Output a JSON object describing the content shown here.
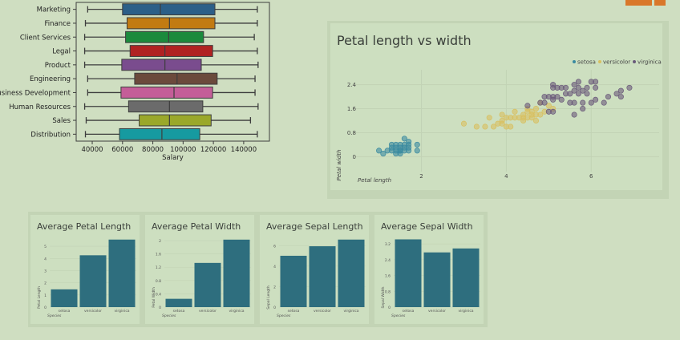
{
  "colors": {
    "bar": "#2e6e7e",
    "setosa": "#3a8aa0",
    "versicolor": "#d8c060",
    "virginica": "#6a5a7a",
    "orange": "#d9772a"
  },
  "chart_data": [
    {
      "type": "box",
      "xlabel": "Salary",
      "xlim": [
        29400,
        157000
      ],
      "xticks": [
        40000,
        60000,
        80000,
        100000,
        120000,
        140000
      ],
      "categories": [
        "Marketing",
        "Finance",
        "Client Services",
        "Legal",
        "Product",
        "Engineering",
        "usiness Development",
        "Human Resources",
        "Sales",
        "Distribution"
      ],
      "colors": [
        "#2c5f88",
        "#c27b12",
        "#1b8a3c",
        "#b02222",
        "#7a4c8e",
        "#6b4a3c",
        "#c45e98",
        "#6b6b6b",
        "#9aa82a",
        "#169aa0"
      ],
      "stats": [
        [
          37000,
          60000,
          85000,
          121000,
          149000
        ],
        [
          35500,
          63000,
          91000,
          121000,
          149000
        ],
        [
          35000,
          62000,
          90500,
          113500,
          147000
        ],
        [
          35000,
          65000,
          88000,
          119500,
          149000
        ],
        [
          35000,
          59500,
          88000,
          112000,
          149500
        ],
        [
          37000,
          68000,
          96000,
          122500,
          147500
        ],
        [
          37000,
          59000,
          94000,
          119500,
          147500
        ],
        [
          35000,
          64000,
          91000,
          113000,
          149500
        ],
        [
          36000,
          71000,
          91000,
          118500,
          144500
        ],
        [
          35500,
          58000,
          86000,
          111000,
          149000
        ]
      ]
    },
    {
      "type": "scatter",
      "title": "Petal length vs width",
      "xlabel": "Petal length",
      "ylabel": "Petal width",
      "xlim": [
        0.8,
        7.6
      ],
      "ylim": [
        -0.5,
        2.9
      ],
      "xticks": [
        2,
        4,
        6
      ],
      "yticks": [
        0,
        0.8,
        1.6,
        2.4
      ],
      "legend": "top-right",
      "series": [
        {
          "name": "setosa",
          "points": [
            [
              1.4,
              0.2
            ],
            [
              1.3,
              0.2
            ],
            [
              1.5,
              0.2
            ],
            [
              1.4,
              0.3
            ],
            [
              1.7,
              0.4
            ],
            [
              1.5,
              0.1
            ],
            [
              1.6,
              0.2
            ],
            [
              1.4,
              0.1
            ],
            [
              1.1,
              0.1
            ],
            [
              1.2,
              0.2
            ],
            [
              1.5,
              0.4
            ],
            [
              1.3,
              0.4
            ],
            [
              1.7,
              0.3
            ],
            [
              1.5,
              0.3
            ],
            [
              1.7,
              0.2
            ],
            [
              1.0,
              0.2
            ],
            [
              1.7,
              0.5
            ],
            [
              1.9,
              0.2
            ],
            [
              1.6,
              0.4
            ],
            [
              1.9,
              0.4
            ],
            [
              1.6,
              0.6
            ],
            [
              1.3,
              0.3
            ],
            [
              1.4,
              0.4
            ],
            [
              1.5,
              0.2
            ],
            [
              1.6,
              0.3
            ]
          ]
        },
        {
          "name": "versicolor",
          "points": [
            [
              4.7,
              1.4
            ],
            [
              4.5,
              1.5
            ],
            [
              4.9,
              1.5
            ],
            [
              4.0,
              1.3
            ],
            [
              4.6,
              1.5
            ],
            [
              4.5,
              1.3
            ],
            [
              4.7,
              1.6
            ],
            [
              3.3,
              1.0
            ],
            [
              4.6,
              1.3
            ],
            [
              3.9,
              1.4
            ],
            [
              3.5,
              1.0
            ],
            [
              4.2,
              1.5
            ],
            [
              4.0,
              1.0
            ],
            [
              3.6,
              1.3
            ],
            [
              4.4,
              1.4
            ],
            [
              4.1,
              1.0
            ],
            [
              3.9,
              1.1
            ],
            [
              4.8,
              1.8
            ],
            [
              4.7,
              1.2
            ],
            [
              4.3,
              1.3
            ],
            [
              4.8,
              1.4
            ],
            [
              5.0,
              1.7
            ],
            [
              3.8,
              1.1
            ],
            [
              3.7,
              1.0
            ],
            [
              3.9,
              1.2
            ],
            [
              5.1,
              1.6
            ],
            [
              4.4,
              1.3
            ],
            [
              4.1,
              1.3
            ],
            [
              4.4,
              1.2
            ],
            [
              3.0,
              1.1
            ],
            [
              4.2,
              1.3
            ],
            [
              4.5,
              1.6
            ],
            [
              4.6,
              1.4
            ]
          ]
        },
        {
          "name": "virginica",
          "points": [
            [
              6.0,
              2.5
            ],
            [
              5.1,
              1.9
            ],
            [
              5.9,
              2.1
            ],
            [
              5.6,
              1.8
            ],
            [
              5.8,
              2.2
            ],
            [
              6.6,
              2.1
            ],
            [
              4.5,
              1.7
            ],
            [
              6.3,
              1.8
            ],
            [
              5.8,
              1.8
            ],
            [
              6.1,
              2.5
            ],
            [
              5.1,
              2.0
            ],
            [
              5.3,
              1.9
            ],
            [
              5.5,
              2.1
            ],
            [
              5.0,
              2.0
            ],
            [
              5.1,
              2.4
            ],
            [
              5.3,
              2.3
            ],
            [
              5.5,
              1.8
            ],
            [
              6.7,
              2.2
            ],
            [
              6.9,
              2.3
            ],
            [
              5.0,
              1.5
            ],
            [
              5.7,
              2.3
            ],
            [
              4.9,
              2.0
            ],
            [
              6.7,
              2.0
            ],
            [
              4.9,
              1.8
            ],
            [
              5.7,
              2.1
            ],
            [
              6.0,
              1.8
            ],
            [
              4.8,
              1.8
            ],
            [
              5.8,
              1.6
            ],
            [
              6.1,
              1.9
            ],
            [
              6.4,
              2.0
            ],
            [
              5.6,
              2.2
            ],
            [
              5.1,
              1.5
            ],
            [
              5.6,
              1.4
            ],
            [
              6.1,
              2.3
            ],
            [
              5.6,
              2.4
            ],
            [
              5.4,
              2.1
            ],
            [
              5.2,
              2.3
            ],
            [
              5.4,
              2.3
            ],
            [
              5.7,
              2.5
            ],
            [
              5.2,
              2.0
            ],
            [
              5.1,
              2.3
            ],
            [
              5.9,
              2.3
            ]
          ]
        }
      ]
    },
    {
      "type": "bar",
      "title": "Average Petal Length",
      "xlabel": "Species",
      "ylabel": "Petal Length",
      "categories": [
        "setosa",
        "versicolor",
        "virginica"
      ],
      "values": [
        1.46,
        4.26,
        5.55
      ],
      "ylim": [
        0,
        5.6
      ],
      "yticks": [
        0,
        1,
        2,
        3,
        4,
        5
      ]
    },
    {
      "type": "bar",
      "title": "Average Petal Width",
      "xlabel": "Species",
      "ylabel": "Petal Width",
      "categories": [
        "setosa",
        "versicolor",
        "virginica"
      ],
      "values": [
        0.25,
        1.33,
        2.03
      ],
      "ylim": [
        0,
        2.05
      ],
      "yticks": [
        0,
        0.4,
        0.8,
        1.2,
        1.6,
        2
      ]
    },
    {
      "type": "bar",
      "title": "Average Sepal Length",
      "xlabel": "Species",
      "ylabel": "Sepal Length",
      "categories": [
        "setosa",
        "versicolor",
        "virginica"
      ],
      "values": [
        5.01,
        5.94,
        6.59
      ],
      "ylim": [
        0,
        6.65
      ],
      "yticks": [
        0,
        2,
        4,
        6
      ]
    },
    {
      "type": "bar",
      "title": "Average Sepal Width",
      "xlabel": "Species",
      "ylabel": "Sepal Width",
      "categories": [
        "setosa",
        "versicolor",
        "virginica"
      ],
      "values": [
        3.43,
        2.77,
        2.97
      ],
      "ylim": [
        0,
        3.45
      ],
      "yticks": [
        0,
        0.8,
        1.6,
        2.4,
        3.2
      ]
    }
  ]
}
